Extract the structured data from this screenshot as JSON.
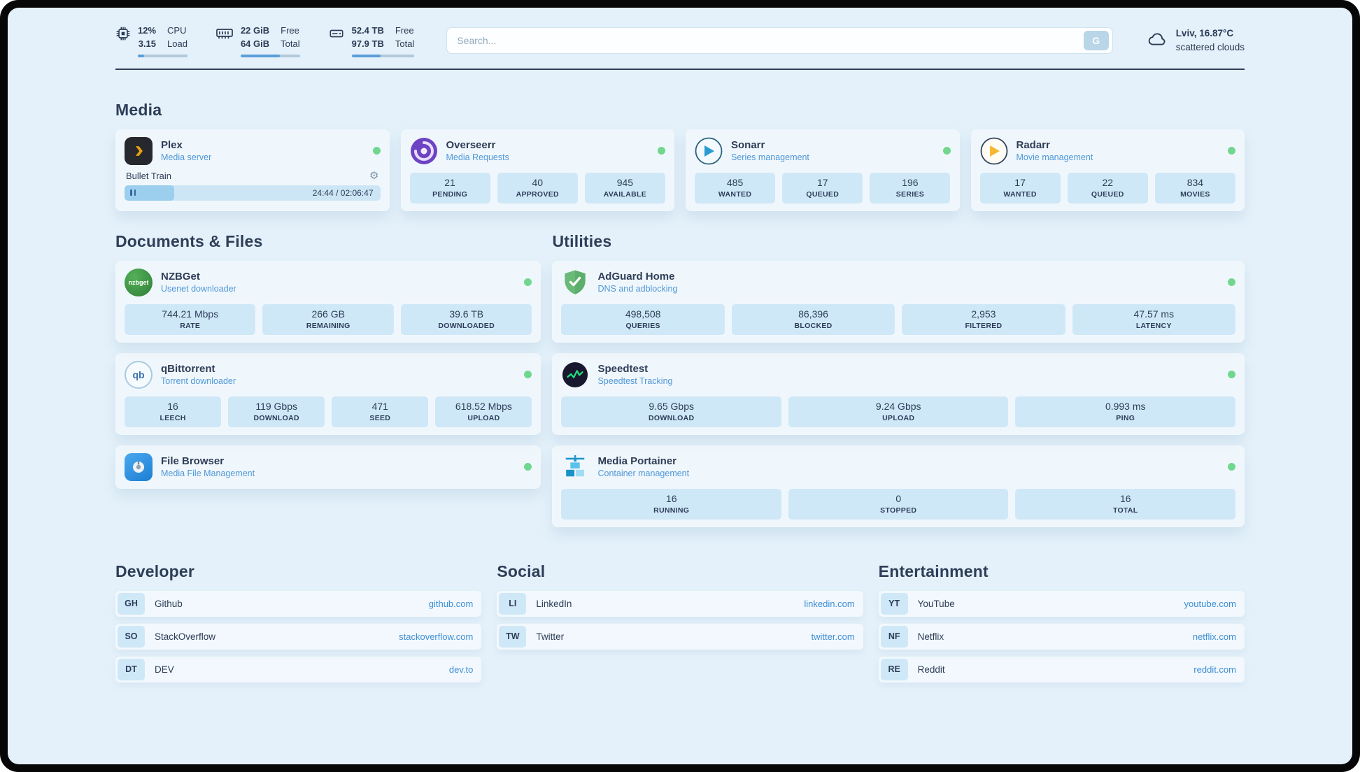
{
  "colors": {
    "background": "#e4f1fa",
    "frame": "#070708",
    "text_primary": "#2e3d58",
    "text_accent": "#4f97d7",
    "stat_box": "#cfe8f8",
    "status_online": "#71d78f",
    "link": "#3e8ed5",
    "bar_fill": "#5b9fd9"
  },
  "topbar": {
    "cpu": {
      "values": [
        "12%",
        "3.15"
      ],
      "labels": [
        "CPU",
        "Load"
      ],
      "bar_percent": 12
    },
    "ram": {
      "values": [
        "22 GiB",
        "64 GiB"
      ],
      "labels": [
        "Free",
        "Total"
      ],
      "bar_percent": 66
    },
    "disk": {
      "values": [
        "52.4 TB",
        "97.9 TB"
      ],
      "labels": [
        "Free",
        "Total"
      ],
      "bar_percent": 46
    },
    "search": {
      "placeholder": "Search...",
      "button_label": "G"
    },
    "weather": {
      "location": "Lviv, 16.87°C",
      "condition": "scattered clouds"
    }
  },
  "media": {
    "title": "Media",
    "plex": {
      "name": "Plex",
      "subtitle": "Media server",
      "status": "online",
      "now_playing": {
        "title": "Bullet Train",
        "time": "24:44 / 02:06:47",
        "progress_percent": 19.5
      }
    },
    "overseerr": {
      "name": "Overseerr",
      "subtitle": "Media Requests",
      "status": "online",
      "stats": [
        {
          "value": "21",
          "label": "PENDING"
        },
        {
          "value": "40",
          "label": "APPROVED"
        },
        {
          "value": "945",
          "label": "AVAILABLE"
        }
      ]
    },
    "sonarr": {
      "name": "Sonarr",
      "subtitle": "Series management",
      "status": "online",
      "stats": [
        {
          "value": "485",
          "label": "WANTED"
        },
        {
          "value": "17",
          "label": "QUEUED"
        },
        {
          "value": "196",
          "label": "SERIES"
        }
      ]
    },
    "radarr": {
      "name": "Radarr",
      "subtitle": "Movie management",
      "status": "online",
      "stats": [
        {
          "value": "17",
          "label": "WANTED"
        },
        {
          "value": "22",
          "label": "QUEUED"
        },
        {
          "value": "834",
          "label": "MOVIES"
        }
      ]
    }
  },
  "documents": {
    "title": "Documents & Files",
    "nzbget": {
      "name": "NZBGet",
      "subtitle": "Usenet downloader",
      "status": "online",
      "stats": [
        {
          "value": "744.21 Mbps",
          "label": "RATE"
        },
        {
          "value": "266 GB",
          "label": "REMAINING"
        },
        {
          "value": "39.6 TB",
          "label": "DOWNLOADED"
        }
      ]
    },
    "qbittorrent": {
      "name": "qBittorrent",
      "subtitle": "Torrent downloader",
      "status": "online",
      "stats": [
        {
          "value": "16",
          "label": "LEECH"
        },
        {
          "value": "119 Gbps",
          "label": "DOWNLOAD"
        },
        {
          "value": "471",
          "label": "SEED"
        },
        {
          "value": "618.52 Mbps",
          "label": "UPLOAD"
        }
      ]
    },
    "filebrowser": {
      "name": "File Browser",
      "subtitle": "Media File Management",
      "status": "online"
    }
  },
  "utilities": {
    "title": "Utilities",
    "adguard": {
      "name": "AdGuard Home",
      "subtitle": "DNS and adblocking",
      "status": "online",
      "stats": [
        {
          "value": "498,508",
          "label": "QUERIES"
        },
        {
          "value": "86,396",
          "label": "BLOCKED"
        },
        {
          "value": "2,953",
          "label": "FILTERED"
        },
        {
          "value": "47.57 ms",
          "label": "LATENCY"
        }
      ]
    },
    "speedtest": {
      "name": "Speedtest",
      "subtitle": "Speedtest Tracking",
      "status": "online",
      "stats": [
        {
          "value": "9.65 Gbps",
          "label": "DOWNLOAD"
        },
        {
          "value": "9.24 Gbps",
          "label": "UPLOAD"
        },
        {
          "value": "0.993 ms",
          "label": "PING"
        }
      ]
    },
    "portainer": {
      "name": "Media Portainer",
      "subtitle": "Container management",
      "status": "online",
      "stats": [
        {
          "value": "16",
          "label": "RUNNING"
        },
        {
          "value": "0",
          "label": "STOPPED"
        },
        {
          "value": "16",
          "label": "TOTAL"
        }
      ]
    }
  },
  "bookmarks": [
    {
      "title": "Developer",
      "items": [
        {
          "abbr": "GH",
          "name": "Github",
          "link": "github.com"
        },
        {
          "abbr": "SO",
          "name": "StackOverflow",
          "link": "stackoverflow.com"
        },
        {
          "abbr": "DT",
          "name": "DEV",
          "link": "dev.to"
        }
      ]
    },
    {
      "title": "Social",
      "items": [
        {
          "abbr": "LI",
          "name": "LinkedIn",
          "link": "linkedin.com"
        },
        {
          "abbr": "TW",
          "name": "Twitter",
          "link": "twitter.com"
        }
      ]
    },
    {
      "title": "Entertainment",
      "items": [
        {
          "abbr": "YT",
          "name": "YouTube",
          "link": "youtube.com"
        },
        {
          "abbr": "NF",
          "name": "Netflix",
          "link": "netflix.com"
        },
        {
          "abbr": "RE",
          "name": "Reddit",
          "link": "reddit.com"
        }
      ]
    }
  ],
  "icons": {
    "nzbget_text": "nzbget",
    "qbittorrent_text": "qb"
  }
}
